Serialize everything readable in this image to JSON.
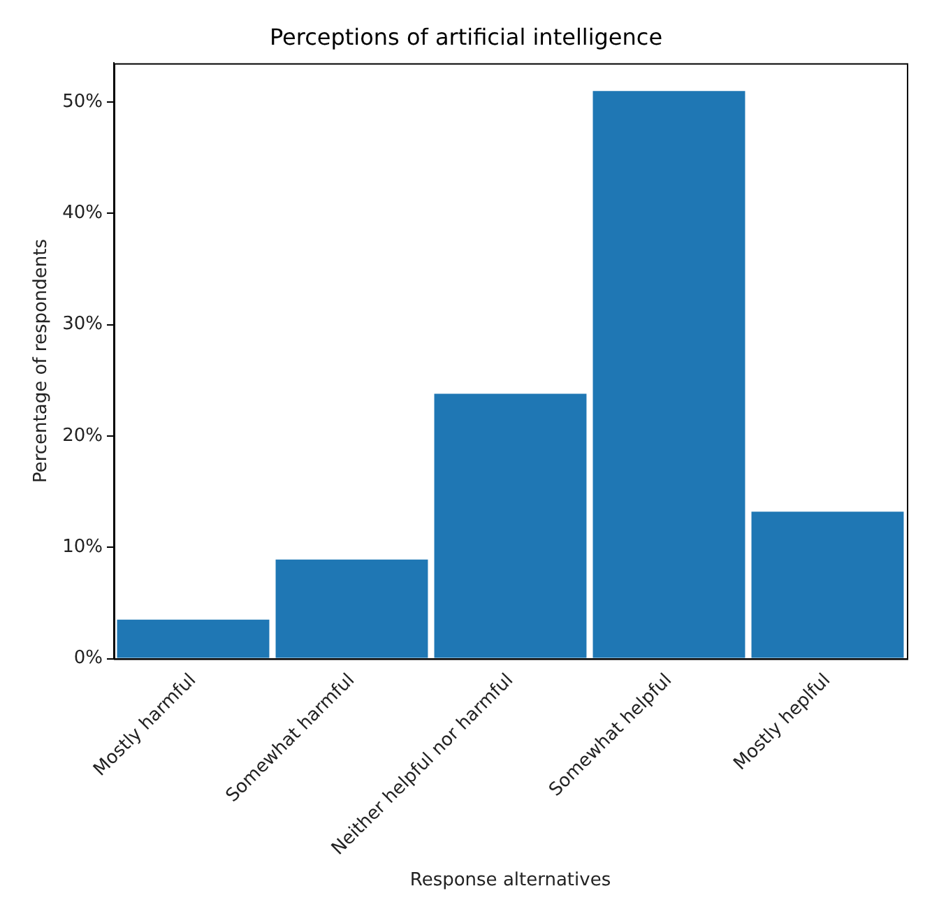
{
  "chart_data": {
    "type": "bar",
    "title": "Perceptions of artificial intelligence",
    "xlabel": "Response alternatives",
    "ylabel": "Percentage of respondents",
    "categories": [
      "Mostly harmful",
      "Somewhat harmful",
      "Neither helpful nor harmful",
      "Somewhat helpful",
      "Mostly heplful"
    ],
    "values": [
      3.5,
      8.9,
      23.8,
      51.0,
      13.2
    ],
    "color": "#1f77b4",
    "ylim": [
      0,
      53.5
    ],
    "yticks": [
      {
        "value": 0,
        "label": "0%"
      },
      {
        "value": 10,
        "label": "10%"
      },
      {
        "value": 20,
        "label": "20%"
      },
      {
        "value": 30,
        "label": "30%"
      },
      {
        "value": 40,
        "label": "40%"
      },
      {
        "value": 50,
        "label": "50%"
      }
    ],
    "grid": false,
    "legend": false
  }
}
